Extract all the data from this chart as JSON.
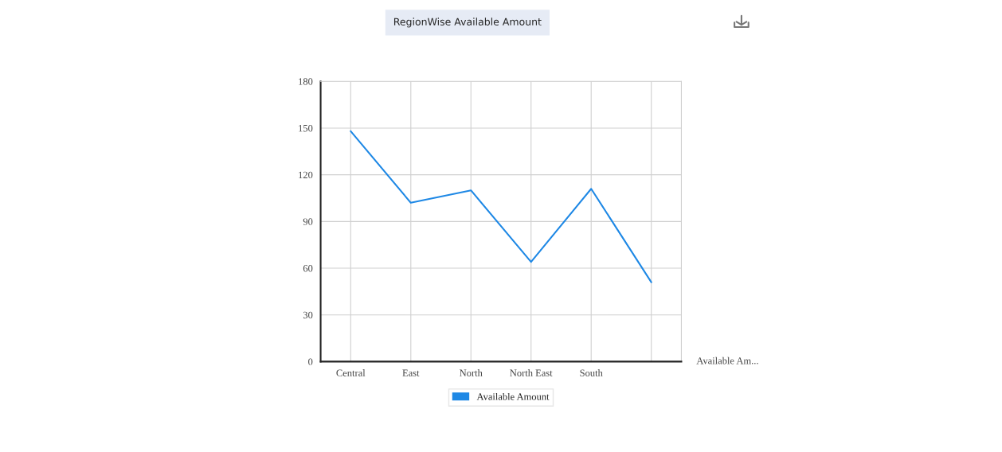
{
  "chart_data": {
    "type": "line",
    "title": "RegionWise Available Amount",
    "categories": [
      "Central",
      "East",
      "North",
      "North East",
      "South",
      null
    ],
    "series": [
      {
        "name": "Available Amount",
        "color": "#1e88e5",
        "values": [
          148,
          102,
          110,
          64,
          111,
          51
        ]
      }
    ],
    "ylim": [
      0,
      180
    ],
    "yticks": [
      0,
      30,
      60,
      90,
      120,
      150,
      180
    ],
    "grid": true,
    "legend": "bottom",
    "marker": "none",
    "line_style": "solid",
    "annotations": [
      "Available Am..."
    ]
  }
}
